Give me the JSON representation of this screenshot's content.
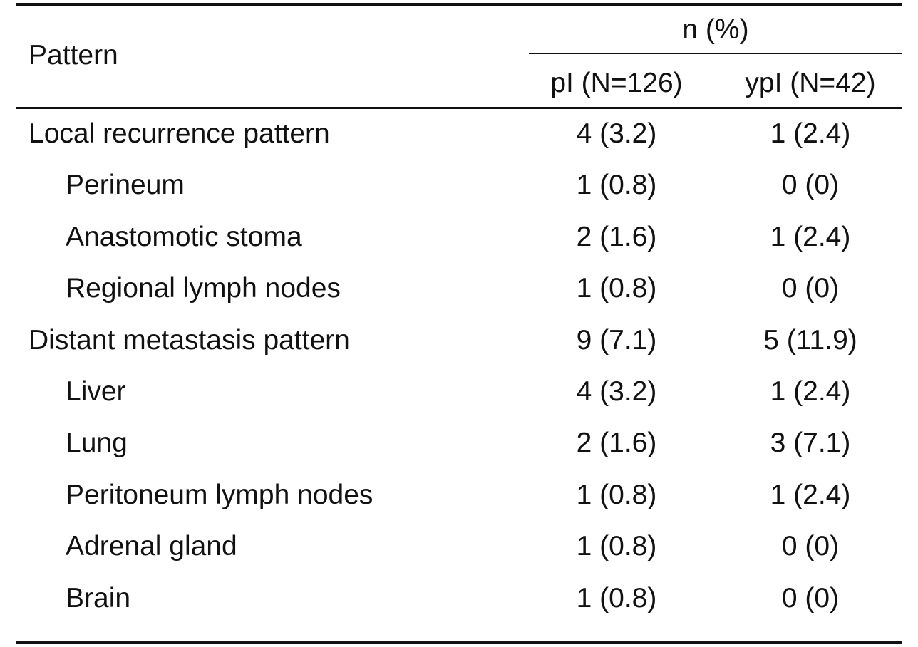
{
  "table": {
    "pattern_header": "Pattern",
    "group_header": "n (%)",
    "columns": [
      "pI (N=126)",
      "ypI (N=42)"
    ],
    "rows": [
      {
        "label": "Local recurrence pattern",
        "indent": 0,
        "pI": "4 (3.2)",
        "ypI": "1 (2.4)"
      },
      {
        "label": "Perineum",
        "indent": 1,
        "pI": "1 (0.8)",
        "ypI": "0 (0)"
      },
      {
        "label": "Anastomotic stoma",
        "indent": 1,
        "pI": "2 (1.6)",
        "ypI": "1 (2.4)"
      },
      {
        "label": "Regional lymph nodes",
        "indent": 1,
        "pI": "1 (0.8)",
        "ypI": "0 (0)"
      },
      {
        "label": "Distant metastasis pattern",
        "indent": 0,
        "pI": "9 (7.1)",
        "ypI": "5 (11.9)"
      },
      {
        "label": "Liver",
        "indent": 1,
        "pI": "4 (3.2)",
        "ypI": "1 (2.4)"
      },
      {
        "label": "Lung",
        "indent": 1,
        "pI": "2 (1.6)",
        "ypI": "3 (7.1)"
      },
      {
        "label": "Peritoneum lymph nodes",
        "indent": 1,
        "pI": "1 (0.8)",
        "ypI": "1 (2.4)"
      },
      {
        "label": "Adrenal gland",
        "indent": 1,
        "pI": "1 (0.8)",
        "ypI": "0 (0)"
      },
      {
        "label": "Brain",
        "indent": 1,
        "pI": "1 (0.8)",
        "ypI": "0 (0)"
      }
    ]
  }
}
